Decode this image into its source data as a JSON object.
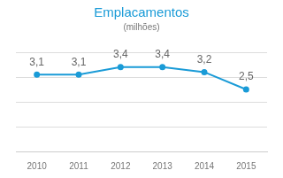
{
  "chart_data": {
    "type": "line",
    "title": "Emplacamentos",
    "subtitle": "(milhões)",
    "categories": [
      "2010",
      "2011",
      "2012",
      "2013",
      "2014",
      "2015"
    ],
    "values": [
      3.1,
      3.1,
      3.4,
      3.4,
      3.2,
      2.5
    ],
    "value_labels": [
      "3,1",
      "3,1",
      "3,4",
      "3,4",
      "3,2",
      "2,5"
    ],
    "color": "#1a9bd7",
    "marker": "circle",
    "ylim": [
      0,
      4
    ],
    "yticks": [
      0,
      1,
      2,
      3,
      4
    ],
    "grid": true,
    "data_labels": true,
    "tick_labels": "x"
  }
}
